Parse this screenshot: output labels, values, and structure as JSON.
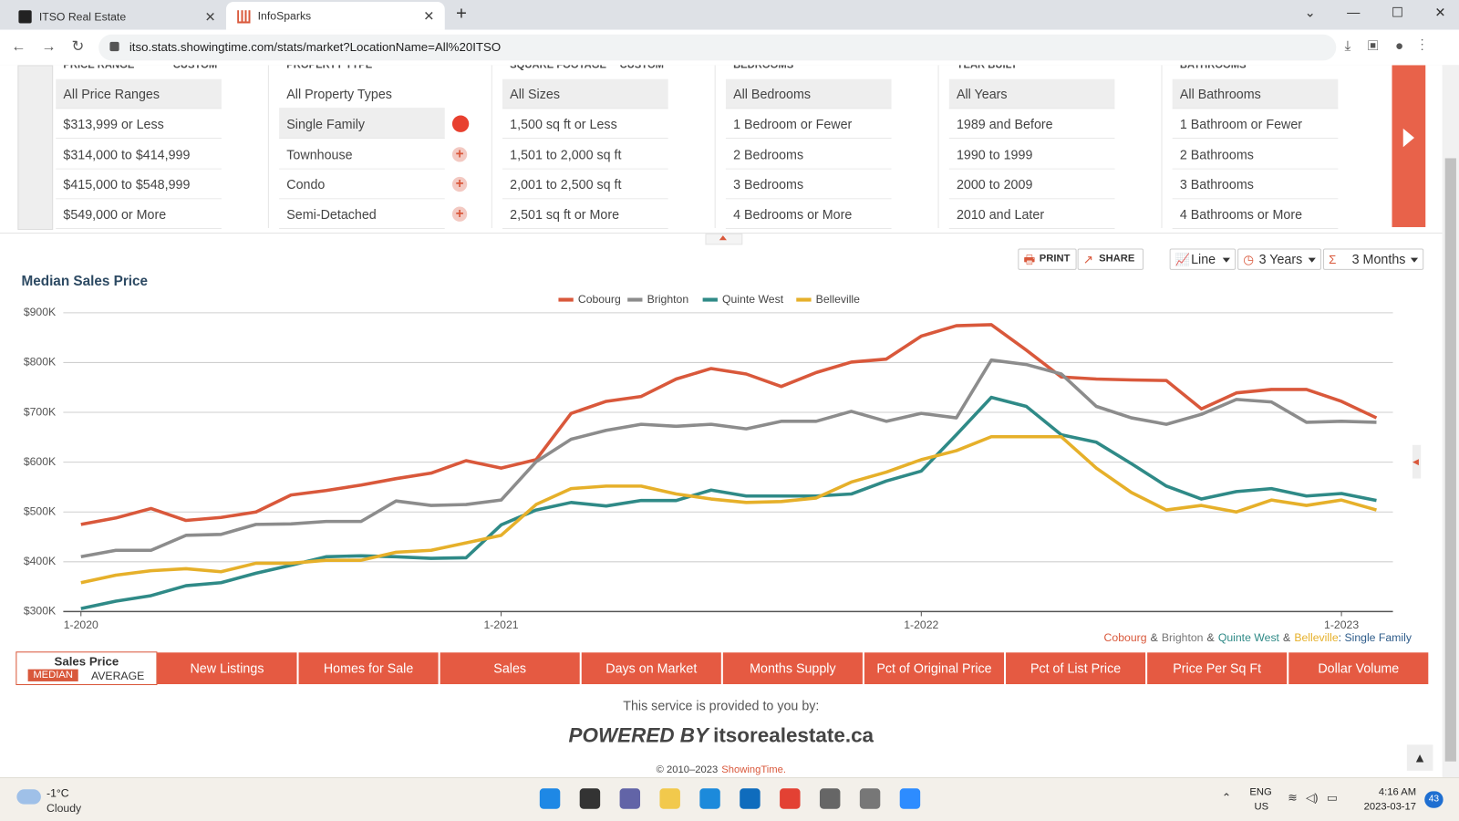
{
  "browser": {
    "tabs": [
      "ITSO Real Estate",
      "InfoSparks"
    ],
    "url": "itso.stats.showingtime.com/stats/market?LocationName=All%20ITSO"
  },
  "filters": [
    {
      "header": "PRICE RANGE",
      "custom": "CUSTOM",
      "selected": 0,
      "options": [
        "All Price Ranges",
        "$313,999 or Less",
        "$314,000 to $414,999",
        "$415,000 to $548,999",
        "$549,000 or More"
      ]
    },
    {
      "header": "PROPERTY TYPE",
      "selected": 1,
      "options": [
        "All Property Types",
        "Single Family",
        "Townhouse",
        "Condo",
        "Semi-Detached"
      ]
    },
    {
      "header": "SQUARE FOOTAGE",
      "custom": "CUSTOM",
      "selected": 0,
      "options": [
        "All Sizes",
        "1,500 sq ft or Less",
        "1,501 to 2,000 sq ft",
        "2,001 to 2,500 sq ft",
        "2,501 sq ft or More"
      ]
    },
    {
      "header": "BEDROOMS",
      "selected": 0,
      "options": [
        "All Bedrooms",
        "1 Bedroom or Fewer",
        "2 Bedrooms",
        "3 Bedrooms",
        "4 Bedrooms or More"
      ]
    },
    {
      "header": "YEAR BUILT",
      "selected": 0,
      "options": [
        "All Years",
        "1989 and Before",
        "1990 to 1999",
        "2000 to 2009",
        "2010 and Later"
      ]
    },
    {
      "header": "BATHROOMS",
      "selected": 0,
      "options": [
        "All Bathrooms",
        "1 Bathroom or Fewer",
        "2 Bathrooms",
        "3 Bathrooms",
        "4 Bathrooms or More"
      ]
    }
  ],
  "toolbar": {
    "print": "PRINT",
    "share": "SHARE",
    "chart_type": "Line",
    "range": "3 Years",
    "rolling": "3 Months"
  },
  "chart_data": {
    "type": "line",
    "title": "Median Sales Price",
    "categories": [
      "1-2020",
      null,
      null,
      null,
      null,
      null,
      null,
      null,
      null,
      null,
      null,
      null,
      "1-2021",
      null,
      null,
      null,
      null,
      null,
      null,
      null,
      null,
      null,
      null,
      null,
      "1-2022",
      null,
      null,
      null,
      null,
      null,
      null,
      null,
      null,
      null,
      null,
      null,
      "1-2023",
      null
    ],
    "series": [
      {
        "name": "Cobourg",
        "color": "#d9583b",
        "values": [
          475000,
          488000,
          507000,
          483000,
          489000,
          500000,
          534000,
          543000,
          554000,
          567000,
          578000,
          603000,
          588000,
          605000,
          698000,
          722000,
          732000,
          767000,
          788000,
          777000,
          752000,
          780000,
          801000,
          807000,
          853000,
          874000,
          876000,
          825000,
          771000,
          767000,
          765000,
          764000,
          707000,
          739000,
          746000,
          746000,
          722000,
          689000
        ]
      },
      {
        "name": "Brighton",
        "color": "#8c8c8c",
        "values": [
          410000,
          423000,
          423000,
          453000,
          455000,
          475000,
          476000,
          481000,
          481000,
          522000,
          513000,
          515000,
          524000,
          601000,
          646000,
          664000,
          676000,
          672000,
          676000,
          667000,
          682000,
          682000,
          702000,
          682000,
          698000,
          689000,
          805000,
          796000,
          777000,
          712000,
          689000,
          676000,
          696000,
          726000,
          721000,
          680000,
          682000,
          680000
        ]
      },
      {
        "name": "Quinte West",
        "color": "#2f8a87",
        "values": [
          306000,
          321000,
          332000,
          352000,
          358000,
          377000,
          393000,
          410000,
          412000,
          410000,
          407000,
          408000,
          474000,
          504000,
          519000,
          512000,
          523000,
          523000,
          544000,
          532000,
          532000,
          532000,
          536000,
          562000,
          582000,
          655000,
          730000,
          712000,
          655000,
          640000,
          597000,
          552000,
          526000,
          541000,
          547000,
          532000,
          537000,
          523000
        ]
      },
      {
        "name": "Belleville",
        "color": "#e6b02a",
        "values": [
          358000,
          373000,
          382000,
          386000,
          380000,
          397000,
          397000,
          403000,
          403000,
          419000,
          423000,
          438000,
          453000,
          515000,
          547000,
          552000,
          552000,
          536000,
          526000,
          519000,
          521000,
          528000,
          560000,
          580000,
          605000,
          623000,
          651000,
          651000,
          651000,
          588000,
          539000,
          504000,
          513000,
          500000,
          524000,
          513000,
          524000,
          504000
        ]
      }
    ],
    "ylim": [
      300000,
      900000
    ],
    "yticks": [
      {
        "value": 300000,
        "label": "$300K"
      },
      {
        "value": 400000,
        "label": "$400K"
      },
      {
        "value": 500000,
        "label": "$500K"
      },
      {
        "value": 600000,
        "label": "$600K"
      },
      {
        "value": 700000,
        "label": "$700K"
      },
      {
        "value": 800000,
        "label": "$800K"
      },
      {
        "value": 900000,
        "label": "$900K"
      }
    ],
    "grid": true,
    "legend": "top",
    "note": {
      "joiner": "&",
      "suffix": ": Single Family"
    }
  },
  "metric_tabs": {
    "active": "Sales Price",
    "median": "MEDIAN",
    "average": "AVERAGE",
    "tabs": [
      "New Listings",
      "Homes for Sale",
      "Sales",
      "Days on Market",
      "Months Supply",
      "Pct of Original Price",
      "Pct of List Price",
      "Price Per Sq Ft",
      "Dollar Volume"
    ]
  },
  "footer": {
    "provided": "This service is provided to you by:",
    "powered": "POWERED BY",
    "site": "itsorealestate.ca",
    "copyright": "© 2010–2023",
    "brand": "ShowingTime."
  },
  "taskbar": {
    "temp": "-1°C",
    "weather": "Cloudy",
    "lang": "ENG",
    "region": "US",
    "time": "4:16 AM",
    "date": "2023-03-17",
    "badge": "43"
  }
}
